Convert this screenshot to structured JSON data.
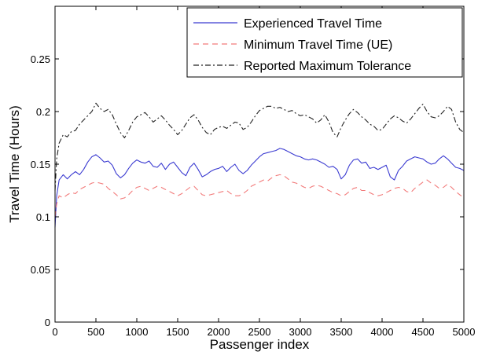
{
  "chart_data": {
    "type": "line",
    "title": "",
    "xlabel": "Passenger index",
    "ylabel": "Travel Time (Hours)",
    "xlim": [
      0,
      5000
    ],
    "ylim": [
      0,
      0.3
    ],
    "xticks": [
      "0",
      "500",
      "1000",
      "1500",
      "2000",
      "2500",
      "3000",
      "3500",
      "4000",
      "4500",
      "5000"
    ],
    "yticks": [
      "0",
      "0.05",
      "0.1",
      "0.15",
      "0.2",
      "0.25"
    ],
    "grid": false,
    "legend_position": "top-right",
    "series": [
      {
        "name": "Experienced Travel Time",
        "color": "#3b3bd1",
        "style": "solid",
        "x": [
          0,
          20,
          50,
          100,
          150,
          200,
          250,
          300,
          350,
          400,
          450,
          500,
          550,
          600,
          650,
          700,
          750,
          800,
          850,
          900,
          950,
          1000,
          1050,
          1100,
          1150,
          1200,
          1250,
          1300,
          1350,
          1400,
          1450,
          1500,
          1550,
          1600,
          1650,
          1700,
          1750,
          1800,
          1850,
          1900,
          1950,
          2000,
          2050,
          2100,
          2150,
          2200,
          2250,
          2300,
          2350,
          2400,
          2450,
          2500,
          2550,
          2600,
          2650,
          2700,
          2750,
          2800,
          2850,
          2900,
          2950,
          3000,
          3050,
          3100,
          3150,
          3200,
          3250,
          3300,
          3350,
          3400,
          3450,
          3500,
          3550,
          3600,
          3650,
          3700,
          3750,
          3800,
          3850,
          3900,
          3950,
          4000,
          4050,
          4100,
          4150,
          4200,
          4250,
          4300,
          4350,
          4400,
          4450,
          4500,
          4550,
          4600,
          4650,
          4700,
          4750,
          4800,
          4850,
          4900,
          4950,
          5000
        ],
        "values": [
          0.09,
          0.12,
          0.135,
          0.14,
          0.136,
          0.14,
          0.143,
          0.14,
          0.145,
          0.152,
          0.157,
          0.159,
          0.156,
          0.152,
          0.153,
          0.149,
          0.141,
          0.137,
          0.14,
          0.146,
          0.151,
          0.154,
          0.152,
          0.151,
          0.153,
          0.148,
          0.147,
          0.151,
          0.145,
          0.15,
          0.152,
          0.147,
          0.142,
          0.139,
          0.147,
          0.151,
          0.145,
          0.138,
          0.14,
          0.143,
          0.145,
          0.146,
          0.148,
          0.143,
          0.147,
          0.15,
          0.144,
          0.141,
          0.144,
          0.149,
          0.153,
          0.157,
          0.16,
          0.161,
          0.162,
          0.163,
          0.165,
          0.164,
          0.162,
          0.16,
          0.158,
          0.157,
          0.155,
          0.154,
          0.155,
          0.154,
          0.152,
          0.15,
          0.147,
          0.148,
          0.145,
          0.136,
          0.14,
          0.149,
          0.154,
          0.155,
          0.151,
          0.152,
          0.146,
          0.147,
          0.145,
          0.147,
          0.149,
          0.138,
          0.135,
          0.144,
          0.148,
          0.153,
          0.155,
          0.157,
          0.156,
          0.155,
          0.152,
          0.15,
          0.151,
          0.155,
          0.158,
          0.155,
          0.151,
          0.147,
          0.146,
          0.144
        ]
      },
      {
        "name": "Minimum Travel Time (UE)",
        "color": "#f27a7a",
        "style": "dashed",
        "x": [
          0,
          20,
          50,
          100,
          150,
          200,
          250,
          300,
          350,
          400,
          450,
          500,
          550,
          600,
          650,
          700,
          750,
          800,
          850,
          900,
          950,
          1000,
          1050,
          1100,
          1150,
          1200,
          1250,
          1300,
          1350,
          1400,
          1450,
          1500,
          1550,
          1600,
          1650,
          1700,
          1750,
          1800,
          1850,
          1900,
          1950,
          2000,
          2050,
          2100,
          2150,
          2200,
          2250,
          2300,
          2350,
          2400,
          2450,
          2500,
          2550,
          2600,
          2650,
          2700,
          2750,
          2800,
          2850,
          2900,
          2950,
          3000,
          3050,
          3100,
          3150,
          3200,
          3250,
          3300,
          3350,
          3400,
          3450,
          3500,
          3550,
          3600,
          3650,
          3700,
          3750,
          3800,
          3850,
          3900,
          3950,
          4000,
          4050,
          4100,
          4150,
          4200,
          4250,
          4300,
          4350,
          4400,
          4450,
          4500,
          4550,
          4600,
          4650,
          4700,
          4750,
          4800,
          4850,
          4900,
          4950,
          5000
        ],
        "values": [
          0.1,
          0.112,
          0.12,
          0.118,
          0.121,
          0.123,
          0.122,
          0.126,
          0.128,
          0.13,
          0.132,
          0.133,
          0.132,
          0.131,
          0.127,
          0.124,
          0.121,
          0.117,
          0.118,
          0.121,
          0.125,
          0.128,
          0.129,
          0.127,
          0.125,
          0.127,
          0.129,
          0.128,
          0.126,
          0.124,
          0.122,
          0.12,
          0.122,
          0.125,
          0.128,
          0.129,
          0.125,
          0.121,
          0.12,
          0.121,
          0.122,
          0.123,
          0.124,
          0.125,
          0.122,
          0.12,
          0.12,
          0.122,
          0.125,
          0.129,
          0.131,
          0.133,
          0.135,
          0.134,
          0.137,
          0.139,
          0.14,
          0.139,
          0.136,
          0.133,
          0.132,
          0.13,
          0.128,
          0.127,
          0.129,
          0.13,
          0.129,
          0.127,
          0.125,
          0.123,
          0.122,
          0.12,
          0.121,
          0.124,
          0.127,
          0.128,
          0.125,
          0.125,
          0.123,
          0.121,
          0.12,
          0.121,
          0.123,
          0.125,
          0.127,
          0.128,
          0.127,
          0.124,
          0.123,
          0.127,
          0.13,
          0.133,
          0.135,
          0.132,
          0.13,
          0.127,
          0.128,
          0.131,
          0.128,
          0.124,
          0.121,
          0.118
        ]
      },
      {
        "name": "Reported Maximum Tolerance",
        "color": "#222222",
        "style": "dashdot",
        "x": [
          0,
          20,
          50,
          100,
          150,
          200,
          250,
          300,
          350,
          400,
          450,
          500,
          550,
          600,
          650,
          700,
          750,
          800,
          850,
          900,
          950,
          1000,
          1050,
          1100,
          1150,
          1200,
          1250,
          1300,
          1350,
          1400,
          1450,
          1500,
          1550,
          1600,
          1650,
          1700,
          1750,
          1800,
          1850,
          1900,
          1950,
          2000,
          2050,
          2100,
          2150,
          2200,
          2250,
          2300,
          2350,
          2400,
          2450,
          2500,
          2550,
          2600,
          2650,
          2700,
          2750,
          2800,
          2850,
          2900,
          2950,
          3000,
          3050,
          3100,
          3150,
          3200,
          3250,
          3300,
          3350,
          3400,
          3450,
          3500,
          3550,
          3600,
          3650,
          3700,
          3750,
          3800,
          3850,
          3900,
          3950,
          4000,
          4050,
          4100,
          4150,
          4200,
          4250,
          4300,
          4350,
          4400,
          4450,
          4500,
          4550,
          4600,
          4650,
          4700,
          4750,
          4800,
          4850,
          4900,
          4950,
          5000
        ],
        "values": [
          0.125,
          0.155,
          0.17,
          0.178,
          0.176,
          0.181,
          0.182,
          0.188,
          0.192,
          0.196,
          0.2,
          0.208,
          0.203,
          0.2,
          0.202,
          0.197,
          0.188,
          0.18,
          0.175,
          0.182,
          0.19,
          0.195,
          0.197,
          0.199,
          0.195,
          0.19,
          0.193,
          0.196,
          0.192,
          0.187,
          0.183,
          0.178,
          0.182,
          0.188,
          0.194,
          0.197,
          0.192,
          0.185,
          0.18,
          0.178,
          0.183,
          0.185,
          0.186,
          0.184,
          0.187,
          0.19,
          0.189,
          0.183,
          0.185,
          0.19,
          0.196,
          0.201,
          0.203,
          0.205,
          0.205,
          0.203,
          0.204,
          0.202,
          0.2,
          0.201,
          0.198,
          0.196,
          0.197,
          0.195,
          0.193,
          0.189,
          0.192,
          0.197,
          0.19,
          0.18,
          0.176,
          0.185,
          0.192,
          0.198,
          0.202,
          0.199,
          0.195,
          0.192,
          0.188,
          0.186,
          0.182,
          0.183,
          0.188,
          0.193,
          0.196,
          0.194,
          0.191,
          0.189,
          0.193,
          0.198,
          0.203,
          0.207,
          0.2,
          0.195,
          0.194,
          0.196,
          0.2,
          0.205,
          0.202,
          0.19,
          0.183,
          0.18
        ]
      }
    ]
  }
}
